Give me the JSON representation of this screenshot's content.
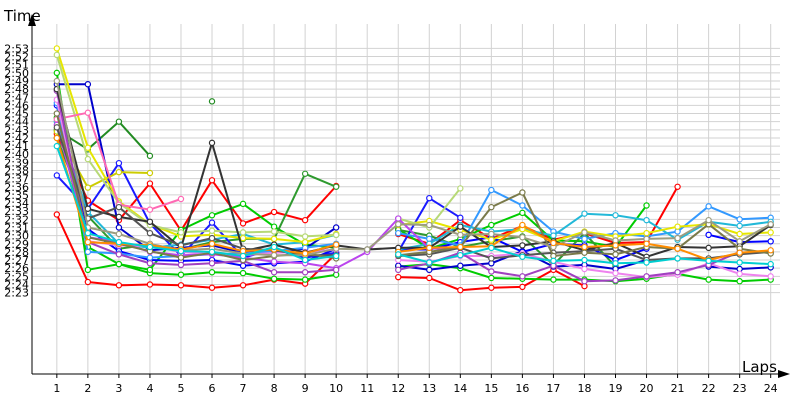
{
  "chart_data": {
    "type": "line",
    "xlabel": "Laps",
    "ylabel": "Time",
    "x": [
      1,
      2,
      3,
      4,
      5,
      6,
      7,
      8,
      9,
      10,
      11,
      12,
      13,
      14,
      15,
      16,
      17,
      18,
      19,
      20,
      21,
      22,
      23,
      24
    ],
    "xlim": [
      0.2,
      24.3
    ],
    "y_unit": "seconds",
    "ylim": [
      133,
      176
    ],
    "y_ticks": [
      "2:23",
      "2:24",
      "2:25",
      "2:26",
      "2:27",
      "2:28",
      "2:29",
      "2:30",
      "2:31",
      "2:32",
      "2:33",
      "2:34",
      "2:35",
      "2:36",
      "2:37",
      "2:38",
      "2:39",
      "2:40",
      "2:41",
      "2:42",
      "2:43",
      "2:44",
      "2:45",
      "2:46",
      "2:47",
      "2:48",
      "2:49",
      "2:50",
      "2:51",
      "2:52",
      "2:53"
    ],
    "y_tick_values": [
      143,
      144,
      145,
      146,
      147,
      148,
      149,
      150,
      151,
      152,
      153,
      154,
      155,
      156,
      157,
      158,
      159,
      160,
      161,
      162,
      163,
      164,
      165,
      166,
      167,
      168,
      169,
      170,
      171,
      172,
      173
    ],
    "grid": true,
    "legend": "none",
    "series": [
      {
        "color": "#ff0000",
        "values": [
          152.6,
          144.3,
          143.9,
          144.0,
          143.9,
          143.6,
          143.9,
          144.6,
          144.1,
          147.8,
          null,
          144.9,
          144.8,
          143.3,
          143.6,
          143.7,
          145.8,
          143.8,
          null,
          null,
          null,
          null,
          null,
          null
        ]
      },
      {
        "color": "#ff0000",
        "values": [
          162.5,
          154.3,
          151.9,
          156.4,
          150.6,
          156.8,
          151.5,
          152.9,
          151.9,
          156.1,
          null,
          150.2,
          149.0,
          151.9,
          149.6,
          151.2,
          149.5,
          150.3,
          149.1,
          149.2,
          156.0,
          null,
          null,
          null
        ]
      },
      {
        "color": "#00cc00",
        "values": [
          170.0,
          145.8,
          146.5,
          145.4,
          145.2,
          145.5,
          145.4,
          144.7,
          144.6,
          145.2,
          null,
          146.2,
          146.5,
          146.0,
          144.8,
          144.7,
          144.6,
          144.6,
          144.4,
          144.7,
          145.3,
          144.6,
          144.4,
          144.6
        ]
      },
      {
        "color": "#00cc00",
        "values": [
          164.5,
          148.6,
          146.5,
          145.8,
          150.7,
          152.5,
          153.9,
          151.1,
          148.9,
          148.5,
          null,
          150.8,
          148.4,
          149.6,
          151.3,
          152.8,
          149.4,
          149.3,
          148.6,
          153.7,
          null,
          null,
          null,
          null
        ]
      },
      {
        "color": "#228b22",
        "values": [
          163.0,
          160.6,
          164.0,
          159.8,
          null,
          166.5,
          null,
          null,
          null,
          null,
          null,
          null,
          null,
          null,
          null,
          null,
          null,
          null,
          null,
          null,
          null,
          null,
          null,
          null
        ]
      },
      {
        "color": "#2e9a2e",
        "values": [
          162.0,
          152.4,
          148.4,
          148.9,
          148.3,
          149.2,
          149.6,
          149.6,
          157.6,
          156.0,
          null,
          150.7,
          150.0,
          148.6,
          149.3,
          149.9,
          146.4,
          150.3,
          146.2,
          null,
          null,
          null,
          null,
          null
        ]
      },
      {
        "color": "#0000cc",
        "values": [
          168.6,
          168.6,
          151.0,
          148.2,
          148.5,
          148.8,
          147.9,
          148.0,
          148.4,
          151.0,
          null,
          146.3,
          145.8,
          146.3,
          146.6,
          148.1,
          146.2,
          146.4,
          145.9,
          147.0,
          null,
          146.2,
          145.9,
          146.1
        ]
      },
      {
        "color": "#1a1aff",
        "values": [
          157.4,
          153.3,
          158.9,
          151.5,
          147.5,
          151.6,
          147.3,
          148.3,
          147.3,
          147.9,
          null,
          148.0,
          154.6,
          152.2,
          null,
          null,
          null,
          null,
          null,
          null,
          null,
          null,
          null,
          null
        ]
      },
      {
        "color": "#0000ff",
        "values": [
          166.0,
          150.8,
          148.1,
          147.0,
          146.9,
          147.0,
          146.3,
          146.6,
          146.8,
          148.4,
          null,
          148.3,
          148.3,
          149.2,
          149.8,
          148.0,
          149.0,
          148.8,
          147.0,
          148.4,
          null,
          150.1,
          149.2,
          149.3
        ]
      },
      {
        "color": "#3399ff",
        "values": [
          166.3,
          148.0,
          147.8,
          147.3,
          147.5,
          147.7,
          147.8,
          148.1,
          148.5,
          149.0,
          null,
          150.3,
          149.6,
          148.8,
          155.6,
          153.7,
          150.5,
          149.6,
          150.3,
          149.9,
          150.5,
          153.6,
          152.0,
          152.2
        ]
      },
      {
        "color": "#22b8d8",
        "values": [
          164.0,
          152.9,
          149.0,
          148.5,
          148.9,
          149.5,
          150.2,
          148.9,
          149.2,
          150.1,
          null,
          148.3,
          149.0,
          151.3,
          150.5,
          150.8,
          150.0,
          152.7,
          152.5,
          151.9,
          149.5,
          151.7,
          151.2,
          151.7
        ]
      },
      {
        "color": "#cccc00",
        "values": [
          162.8,
          155.9,
          157.8,
          157.7,
          null,
          null,
          null,
          null,
          null,
          null,
          null,
          null,
          null,
          null,
          null,
          null,
          null,
          null,
          null,
          null,
          null,
          null,
          null,
          null
        ]
      },
      {
        "color": "#e6e600",
        "values": [
          173.0,
          160.8,
          154.2,
          151.4,
          149.9,
          150.1,
          149.7,
          149.6,
          149.2,
          150.2,
          null,
          151.3,
          151.8,
          150.7,
          149.5,
          150.8,
          149.3,
          150.5,
          149.9,
          150.3,
          151.1,
          151.4,
          150.2,
          150.4
        ]
      },
      {
        "color": "#b7d977",
        "values": [
          172.2,
          159.4,
          154.0,
          151.3,
          150.4,
          150.6,
          150.4,
          150.5,
          149.9,
          150.1,
          null,
          152.1,
          151.0,
          155.8,
          null,
          null,
          null,
          null,
          null,
          null,
          null,
          null,
          null,
          null
        ]
      },
      {
        "color": "#ff69b4",
        "values": [
          164.3,
          165.1,
          153.8,
          153.2,
          154.5,
          null,
          null,
          null,
          null,
          null,
          null,
          null,
          null,
          null,
          null,
          null,
          null,
          null,
          null,
          null,
          null,
          null,
          null,
          null
        ]
      },
      {
        "color": "#ee82ee",
        "values": [
          166.7,
          149.3,
          148.8,
          148.7,
          148.0,
          147.7,
          147.6,
          147.9,
          148.0,
          148.3,
          null,
          147.0,
          146.8,
          147.5,
          147.5,
          147.8,
          146.8,
          145.9,
          145.4,
          144.9,
          145.2,
          146.6,
          145.3,
          145.0
        ]
      },
      {
        "color": "#bb44ee",
        "values": [
          163.6,
          149.8,
          149.2,
          148.0,
          147.6,
          147.7,
          147.3,
          146.8,
          146.6,
          146.0,
          148.0,
          152.1,
          148.4,
          148.5,
          null,
          null,
          null,
          null,
          null,
          null,
          null,
          null,
          null,
          null
        ]
      },
      {
        "color": "#a040c0",
        "values": [
          167.8,
          149.2,
          147.7,
          146.6,
          146.4,
          146.6,
          146.9,
          145.5,
          145.5,
          145.8,
          null,
          145.8,
          146.6,
          147.9,
          145.6,
          145.0,
          146.3,
          144.4,
          144.5,
          145.0,
          145.5,
          146.4,
          148.0,
          null
        ]
      },
      {
        "color": "#333333",
        "values": [
          168.0,
          153.3,
          152.3,
          151.7,
          148.5,
          161.4,
          148.1,
          148.9,
          147.9,
          148.8,
          148.3,
          148.5,
          148.5,
          151.1,
          148.6,
          148.8,
          149.3,
          148.2,
          149.1,
          147.4,
          148.6,
          148.5,
          148.7,
          151.3
        ]
      },
      {
        "color": "#555555",
        "values": [
          163.3,
          152.1,
          153.5,
          150.3,
          148.8,
          149.7,
          148.4,
          148.2,
          147.6,
          147.6,
          null,
          147.5,
          147.7,
          148.5,
          147.2,
          147.6,
          147.9,
          148.1,
          148.4,
          147.0,
          147.2,
          147.2,
          147.7,
          148.0
        ]
      },
      {
        "color": "#7a7a4a",
        "values": [
          165.0,
          149.8,
          149.0,
          148.1,
          147.3,
          147.9,
          147.0,
          147.5,
          147.8,
          147.2,
          null,
          147.6,
          148.0,
          148.6,
          153.5,
          155.3,
          147.5,
          147.9,
          147.7,
          148.6,
          148.4,
          151.4,
          148.4,
          147.8
        ]
      },
      {
        "color": "#9c9c80",
        "values": [
          169.0,
          151.0,
          150.2,
          149.0,
          148.2,
          148.4,
          147.8,
          147.6,
          147.6,
          148.4,
          148.3,
          151.4,
          151.3,
          150.1,
          150.2,
          149.8,
          148.6,
          150.4,
          149.4,
          149.6,
          149.7,
          151.9,
          149.3,
          151.4
        ]
      },
      {
        "color": "#ff8c00",
        "values": [
          162.0,
          149.2,
          149.0,
          148.8,
          148.3,
          149.0,
          148.1,
          148.3,
          147.8,
          148.9,
          null,
          148.0,
          148.5,
          148.6,
          148.7,
          151.3,
          149.1,
          148.6,
          148.8,
          149.0,
          148.4,
          147.0,
          147.9,
          148.2
        ]
      },
      {
        "color": "#00ced1",
        "values": [
          161.0,
          150.3,
          149.2,
          148.6,
          148.1,
          148.0,
          147.5,
          148.6,
          147.0,
          147.5,
          null,
          147.7,
          146.7,
          147.6,
          148.5,
          147.4,
          146.9,
          147.0,
          146.6,
          146.7,
          147.2,
          146.9,
          146.7,
          146.5
        ]
      }
    ]
  }
}
